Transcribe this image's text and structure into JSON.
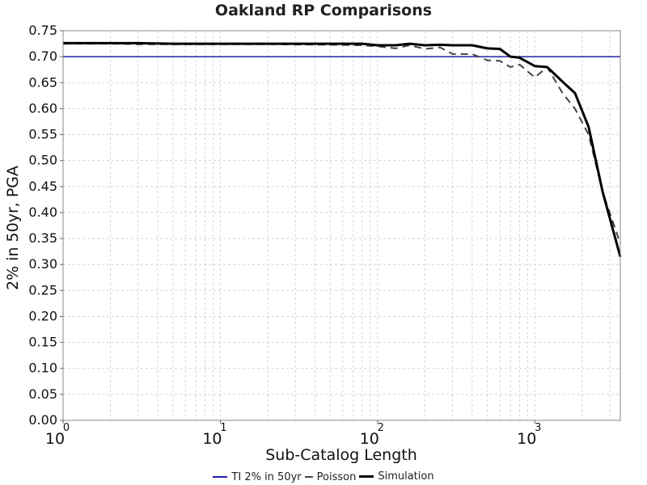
{
  "chart_data": {
    "type": "line",
    "title": "Oakland RP Comparisons",
    "xlabel": "Sub-Catalog Length",
    "ylabel": "2% in 50yr, PGA",
    "xscale": "log",
    "xlim": [
      1,
      3500
    ],
    "ylim": [
      0,
      0.75
    ],
    "yticks": [
      "0.00",
      "0.05",
      "0.10",
      "0.15",
      "0.20",
      "0.25",
      "0.30",
      "0.35",
      "0.40",
      "0.45",
      "0.50",
      "0.55",
      "0.60",
      "0.65",
      "0.70",
      "0.75"
    ],
    "xticks": [
      {
        "base": "10",
        "exp": "0"
      },
      {
        "base": "10",
        "exp": "1"
      },
      {
        "base": "10",
        "exp": "2"
      },
      {
        "base": "10",
        "exp": "3"
      }
    ],
    "grid": true,
    "legend_position": "bottom",
    "series": [
      {
        "name": "TI 2% in 50yr",
        "color": "#2222aa",
        "style": "solid",
        "x": [
          1,
          3500
        ],
        "y": [
          0.7,
          0.7
        ]
      },
      {
        "name": "Poisson",
        "color": "#444444",
        "style": "dashed",
        "x": [
          1,
          2,
          3,
          5,
          10,
          20,
          50,
          80,
          100,
          130,
          160,
          200,
          250,
          300,
          400,
          500,
          600,
          700,
          800,
          1000,
          1200,
          1500,
          1800,
          2200,
          2700,
          3500
        ],
        "y": [
          0.725,
          0.725,
          0.724,
          0.724,
          0.724,
          0.724,
          0.723,
          0.722,
          0.72,
          0.716,
          0.722,
          0.715,
          0.718,
          0.705,
          0.705,
          0.693,
          0.692,
          0.68,
          0.685,
          0.66,
          0.68,
          0.63,
          0.6,
          0.55,
          0.44,
          0.34
        ]
      },
      {
        "name": "Simulation",
        "color": "#000000",
        "style": "solid",
        "x": [
          1,
          2,
          3,
          5,
          10,
          20,
          50,
          80,
          100,
          130,
          160,
          200,
          250,
          300,
          400,
          500,
          600,
          700,
          800,
          1000,
          1200,
          1500,
          1800,
          2200,
          2700,
          3500
        ],
        "y": [
          0.726,
          0.726,
          0.726,
          0.725,
          0.725,
          0.725,
          0.725,
          0.725,
          0.722,
          0.722,
          0.725,
          0.722,
          0.723,
          0.722,
          0.722,
          0.716,
          0.715,
          0.7,
          0.698,
          0.682,
          0.68,
          0.652,
          0.63,
          0.565,
          0.44,
          0.315
        ]
      }
    ]
  }
}
